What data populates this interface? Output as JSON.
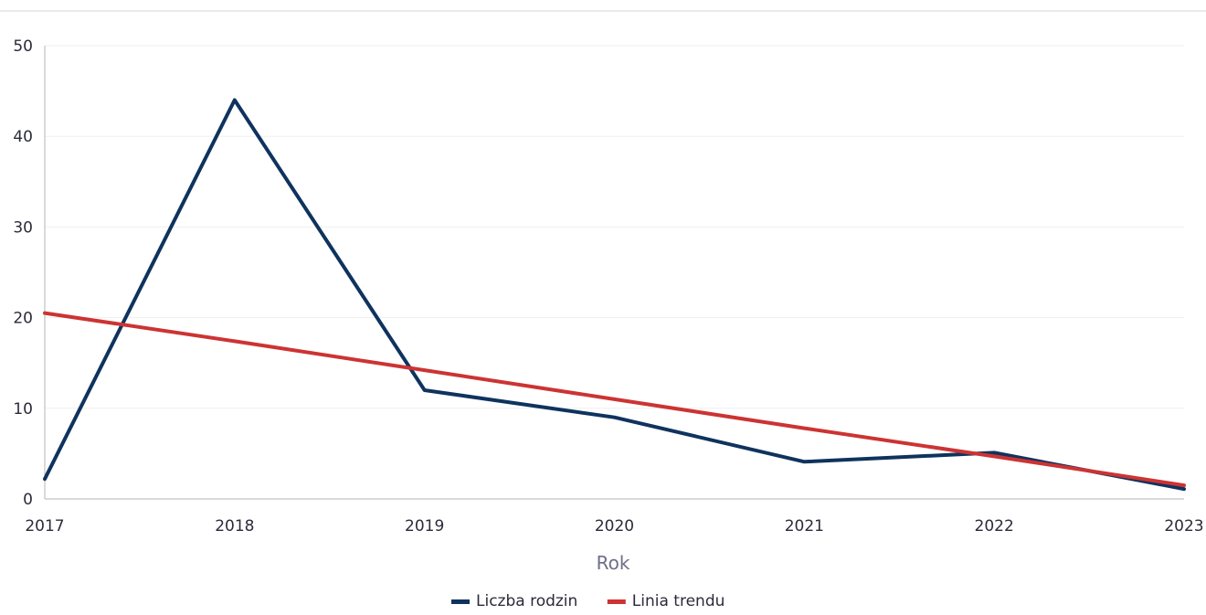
{
  "chart_data": {
    "type": "line",
    "title": "",
    "xlabel": "Rok",
    "ylabel": "",
    "categories": [
      "2017",
      "2018",
      "2019",
      "2020",
      "2021",
      "2022",
      "2023"
    ],
    "ylim": [
      0,
      50
    ],
    "yticks": [
      "0",
      "10",
      "20",
      "30",
      "40",
      "50"
    ],
    "grid": true,
    "legend_position": "bottom",
    "series": [
      {
        "name": "Liczba rodzin",
        "color": "#0f335e",
        "values": [
          2.2,
          44,
          12,
          9,
          4.1,
          5.1,
          1.1
        ]
      },
      {
        "name": "Linia trendu",
        "color": "#cd3333",
        "values": [
          20.5,
          17.4,
          14.2,
          11.0,
          7.8,
          4.7,
          1.5
        ]
      }
    ]
  }
}
